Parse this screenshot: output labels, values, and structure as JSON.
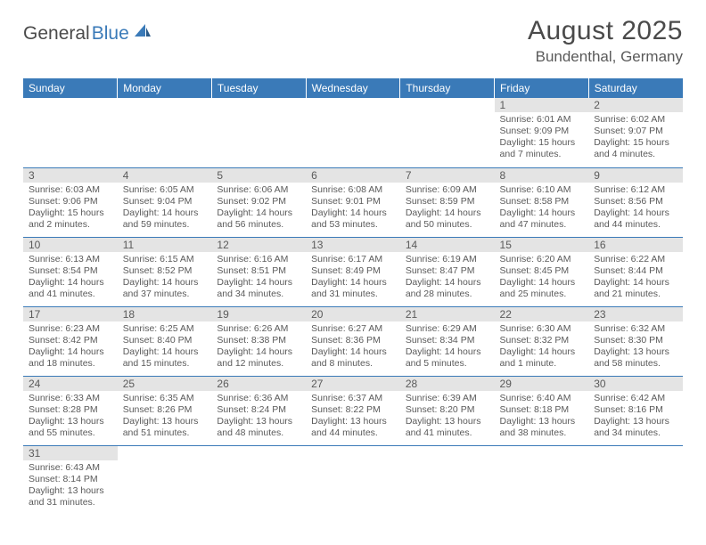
{
  "logo": {
    "part1": "General",
    "part2": "Blue"
  },
  "title": "August 2025",
  "location": "Bundenthal, Germany",
  "colors": {
    "header_bg": "#3a7ab8",
    "header_text": "#ffffff",
    "daynum_bg": "#e4e4e4",
    "border": "#3a7ab8",
    "text": "#5a5a5a",
    "background": "#ffffff"
  },
  "weekdays": [
    "Sunday",
    "Monday",
    "Tuesday",
    "Wednesday",
    "Thursday",
    "Friday",
    "Saturday"
  ],
  "weeks": [
    [
      {
        "day": "",
        "sunrise": "",
        "sunset": "",
        "daylight": ""
      },
      {
        "day": "",
        "sunrise": "",
        "sunset": "",
        "daylight": ""
      },
      {
        "day": "",
        "sunrise": "",
        "sunset": "",
        "daylight": ""
      },
      {
        "day": "",
        "sunrise": "",
        "sunset": "",
        "daylight": ""
      },
      {
        "day": "",
        "sunrise": "",
        "sunset": "",
        "daylight": ""
      },
      {
        "day": "1",
        "sunrise": "Sunrise: 6:01 AM",
        "sunset": "Sunset: 9:09 PM",
        "daylight": "Daylight: 15 hours and 7 minutes."
      },
      {
        "day": "2",
        "sunrise": "Sunrise: 6:02 AM",
        "sunset": "Sunset: 9:07 PM",
        "daylight": "Daylight: 15 hours and 4 minutes."
      }
    ],
    [
      {
        "day": "3",
        "sunrise": "Sunrise: 6:03 AM",
        "sunset": "Sunset: 9:06 PM",
        "daylight": "Daylight: 15 hours and 2 minutes."
      },
      {
        "day": "4",
        "sunrise": "Sunrise: 6:05 AM",
        "sunset": "Sunset: 9:04 PM",
        "daylight": "Daylight: 14 hours and 59 minutes."
      },
      {
        "day": "5",
        "sunrise": "Sunrise: 6:06 AM",
        "sunset": "Sunset: 9:02 PM",
        "daylight": "Daylight: 14 hours and 56 minutes."
      },
      {
        "day": "6",
        "sunrise": "Sunrise: 6:08 AM",
        "sunset": "Sunset: 9:01 PM",
        "daylight": "Daylight: 14 hours and 53 minutes."
      },
      {
        "day": "7",
        "sunrise": "Sunrise: 6:09 AM",
        "sunset": "Sunset: 8:59 PM",
        "daylight": "Daylight: 14 hours and 50 minutes."
      },
      {
        "day": "8",
        "sunrise": "Sunrise: 6:10 AM",
        "sunset": "Sunset: 8:58 PM",
        "daylight": "Daylight: 14 hours and 47 minutes."
      },
      {
        "day": "9",
        "sunrise": "Sunrise: 6:12 AM",
        "sunset": "Sunset: 8:56 PM",
        "daylight": "Daylight: 14 hours and 44 minutes."
      }
    ],
    [
      {
        "day": "10",
        "sunrise": "Sunrise: 6:13 AM",
        "sunset": "Sunset: 8:54 PM",
        "daylight": "Daylight: 14 hours and 41 minutes."
      },
      {
        "day": "11",
        "sunrise": "Sunrise: 6:15 AM",
        "sunset": "Sunset: 8:52 PM",
        "daylight": "Daylight: 14 hours and 37 minutes."
      },
      {
        "day": "12",
        "sunrise": "Sunrise: 6:16 AM",
        "sunset": "Sunset: 8:51 PM",
        "daylight": "Daylight: 14 hours and 34 minutes."
      },
      {
        "day": "13",
        "sunrise": "Sunrise: 6:17 AM",
        "sunset": "Sunset: 8:49 PM",
        "daylight": "Daylight: 14 hours and 31 minutes."
      },
      {
        "day": "14",
        "sunrise": "Sunrise: 6:19 AM",
        "sunset": "Sunset: 8:47 PM",
        "daylight": "Daylight: 14 hours and 28 minutes."
      },
      {
        "day": "15",
        "sunrise": "Sunrise: 6:20 AM",
        "sunset": "Sunset: 8:45 PM",
        "daylight": "Daylight: 14 hours and 25 minutes."
      },
      {
        "day": "16",
        "sunrise": "Sunrise: 6:22 AM",
        "sunset": "Sunset: 8:44 PM",
        "daylight": "Daylight: 14 hours and 21 minutes."
      }
    ],
    [
      {
        "day": "17",
        "sunrise": "Sunrise: 6:23 AM",
        "sunset": "Sunset: 8:42 PM",
        "daylight": "Daylight: 14 hours and 18 minutes."
      },
      {
        "day": "18",
        "sunrise": "Sunrise: 6:25 AM",
        "sunset": "Sunset: 8:40 PM",
        "daylight": "Daylight: 14 hours and 15 minutes."
      },
      {
        "day": "19",
        "sunrise": "Sunrise: 6:26 AM",
        "sunset": "Sunset: 8:38 PM",
        "daylight": "Daylight: 14 hours and 12 minutes."
      },
      {
        "day": "20",
        "sunrise": "Sunrise: 6:27 AM",
        "sunset": "Sunset: 8:36 PM",
        "daylight": "Daylight: 14 hours and 8 minutes."
      },
      {
        "day": "21",
        "sunrise": "Sunrise: 6:29 AM",
        "sunset": "Sunset: 8:34 PM",
        "daylight": "Daylight: 14 hours and 5 minutes."
      },
      {
        "day": "22",
        "sunrise": "Sunrise: 6:30 AM",
        "sunset": "Sunset: 8:32 PM",
        "daylight": "Daylight: 14 hours and 1 minute."
      },
      {
        "day": "23",
        "sunrise": "Sunrise: 6:32 AM",
        "sunset": "Sunset: 8:30 PM",
        "daylight": "Daylight: 13 hours and 58 minutes."
      }
    ],
    [
      {
        "day": "24",
        "sunrise": "Sunrise: 6:33 AM",
        "sunset": "Sunset: 8:28 PM",
        "daylight": "Daylight: 13 hours and 55 minutes."
      },
      {
        "day": "25",
        "sunrise": "Sunrise: 6:35 AM",
        "sunset": "Sunset: 8:26 PM",
        "daylight": "Daylight: 13 hours and 51 minutes."
      },
      {
        "day": "26",
        "sunrise": "Sunrise: 6:36 AM",
        "sunset": "Sunset: 8:24 PM",
        "daylight": "Daylight: 13 hours and 48 minutes."
      },
      {
        "day": "27",
        "sunrise": "Sunrise: 6:37 AM",
        "sunset": "Sunset: 8:22 PM",
        "daylight": "Daylight: 13 hours and 44 minutes."
      },
      {
        "day": "28",
        "sunrise": "Sunrise: 6:39 AM",
        "sunset": "Sunset: 8:20 PM",
        "daylight": "Daylight: 13 hours and 41 minutes."
      },
      {
        "day": "29",
        "sunrise": "Sunrise: 6:40 AM",
        "sunset": "Sunset: 8:18 PM",
        "daylight": "Daylight: 13 hours and 38 minutes."
      },
      {
        "day": "30",
        "sunrise": "Sunrise: 6:42 AM",
        "sunset": "Sunset: 8:16 PM",
        "daylight": "Daylight: 13 hours and 34 minutes."
      }
    ],
    [
      {
        "day": "31",
        "sunrise": "Sunrise: 6:43 AM",
        "sunset": "Sunset: 8:14 PM",
        "daylight": "Daylight: 13 hours and 31 minutes."
      },
      {
        "day": "",
        "sunrise": "",
        "sunset": "",
        "daylight": ""
      },
      {
        "day": "",
        "sunrise": "",
        "sunset": "",
        "daylight": ""
      },
      {
        "day": "",
        "sunrise": "",
        "sunset": "",
        "daylight": ""
      },
      {
        "day": "",
        "sunrise": "",
        "sunset": "",
        "daylight": ""
      },
      {
        "day": "",
        "sunrise": "",
        "sunset": "",
        "daylight": ""
      },
      {
        "day": "",
        "sunrise": "",
        "sunset": "",
        "daylight": ""
      }
    ]
  ]
}
